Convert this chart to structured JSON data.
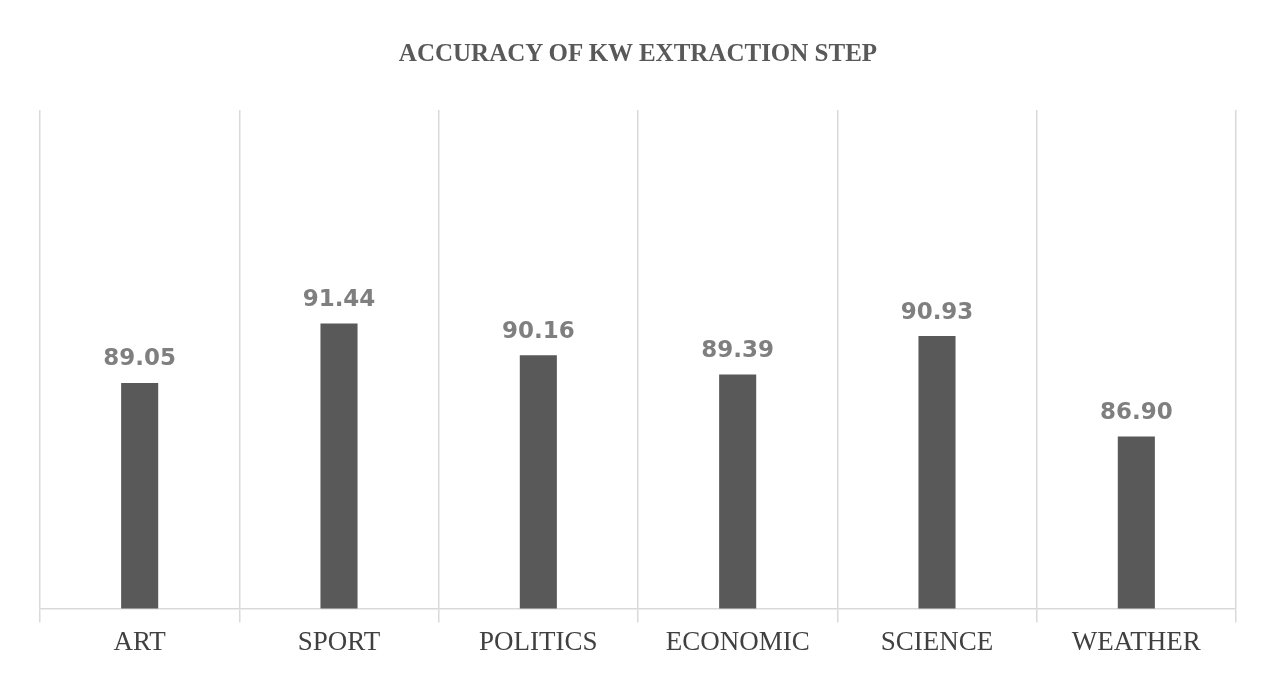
{
  "chart_data": {
    "type": "bar",
    "title": "ACCURACY OF KW EXTRACTION STEP",
    "categories": [
      "ART",
      "SPORT",
      "POLITICS",
      "ECONOMIC",
      "SCIENCE",
      "WEATHER"
    ],
    "values": [
      89.05,
      91.44,
      90.16,
      89.39,
      90.93,
      86.9
    ],
    "value_labels": [
      "89.05",
      "91.44",
      "90.16",
      "89.39",
      "90.93",
      "86.90"
    ],
    "color": "#595959",
    "ylim": [
      80,
      100
    ],
    "grid": "x",
    "tick_labels": "x",
    "legend": false
  }
}
